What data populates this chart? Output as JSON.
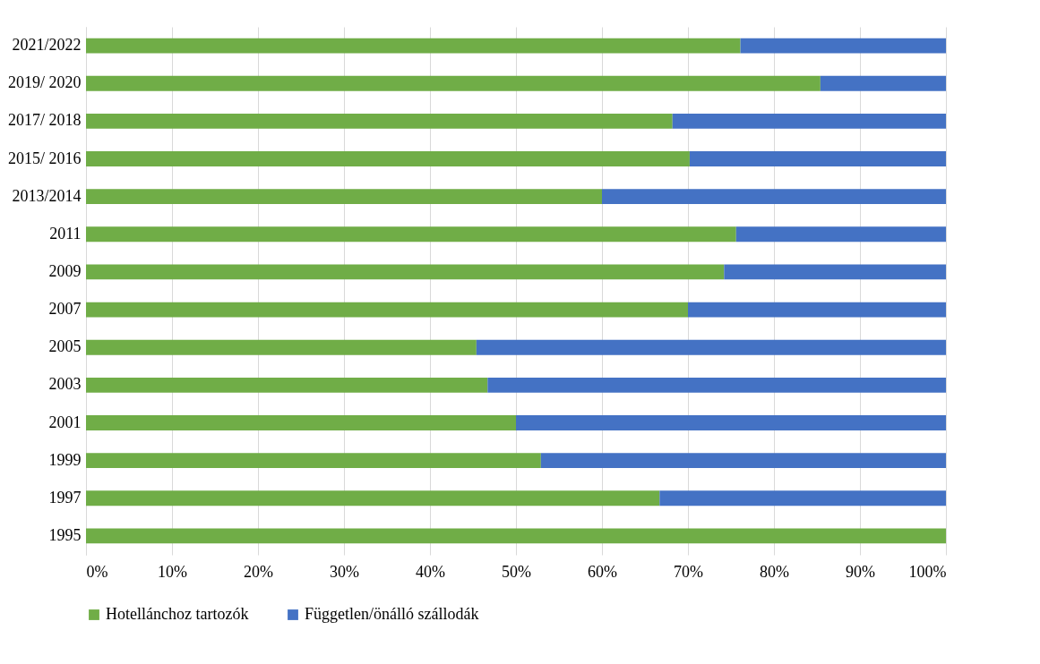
{
  "chart_data": {
    "type": "bar",
    "orientation": "horizontal",
    "stacked": true,
    "categories": [
      "2021/2022",
      "2019/ 2020",
      "2017/ 2018",
      "2015/ 2016",
      "2013/2014",
      "2011",
      "2009",
      "2007",
      "2005",
      "2003",
      "2001",
      "1999",
      "1997",
      "1995"
    ],
    "series": [
      {
        "name": "Hotellánchoz tartozók",
        "color": "#70ad47",
        "values": [
          76.1,
          85.4,
          68.2,
          70.2,
          60.0,
          75.6,
          74.2,
          70.0,
          45.4,
          46.7,
          50.0,
          52.9,
          66.7,
          100
        ]
      },
      {
        "name": "Független/önálló szállodák",
        "color": "#4472c4",
        "values": [
          23.9,
          14.6,
          31.8,
          29.8,
          40.0,
          24.4,
          25.8,
          30.0,
          54.6,
          53.3,
          50.0,
          47.1,
          33.3,
          0
        ]
      }
    ],
    "xlim": [
      0,
      100
    ],
    "xticks": [
      {
        "value": 0,
        "label": "0%"
      },
      {
        "value": 10,
        "label": "10%"
      },
      {
        "value": 20,
        "label": "20%"
      },
      {
        "value": 30,
        "label": "30%"
      },
      {
        "value": 40,
        "label": "40%"
      },
      {
        "value": 50,
        "label": "50%"
      },
      {
        "value": 60,
        "label": "60%"
      },
      {
        "value": 70,
        "label": "70%"
      },
      {
        "value": 80,
        "label": "80%"
      },
      {
        "value": 90,
        "label": "90%"
      },
      {
        "value": 100,
        "label": "100%"
      }
    ],
    "grid": "x",
    "legend": "bottom"
  }
}
